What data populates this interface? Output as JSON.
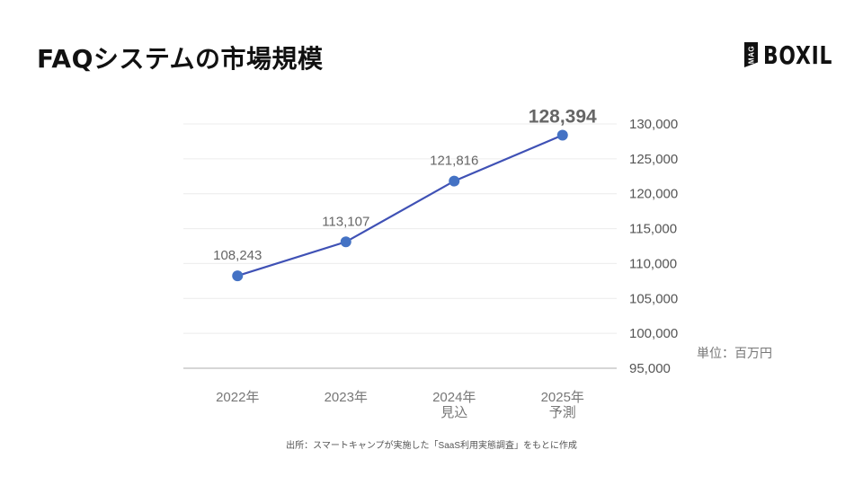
{
  "header": {
    "title": "FAQシステムの市場規模",
    "logo_badge": "MAG",
    "logo_text": "BOXIL"
  },
  "chart_data": {
    "type": "line",
    "title": "FAQシステムの市場規模",
    "categories": [
      "2022年",
      "2023年",
      "2024年 見込",
      "2025年 予測"
    ],
    "category_lines": [
      [
        "2022年"
      ],
      [
        "2023年"
      ],
      [
        "2024年",
        "見込"
      ],
      [
        "2025年",
        "予測"
      ]
    ],
    "series": [
      {
        "name": "市場規模",
        "values": [
          108243,
          113107,
          121816,
          128394
        ],
        "color": "#3F51B5",
        "marker_color": "#4472C4"
      }
    ],
    "data_labels": [
      "108,243",
      "113,107",
      "121,816",
      "128,394"
    ],
    "highlight_last_label": true,
    "xlabel": "",
    "ylabel": "単位：百万円",
    "ylim": [
      95000,
      130000
    ],
    "yticks": [
      95000,
      100000,
      105000,
      110000,
      115000,
      120000,
      125000,
      130000
    ],
    "ytick_labels": [
      "95,000",
      "100,000",
      "105,000",
      "110,000",
      "115,000",
      "120,000",
      "125,000",
      "130,000"
    ],
    "y_axis_position": "right",
    "grid": true,
    "legend": null
  },
  "unit_label": "単位：百万円",
  "source": "出所：スマートキャンプが実施した「SaaS利用実態調査」をもとに作成"
}
